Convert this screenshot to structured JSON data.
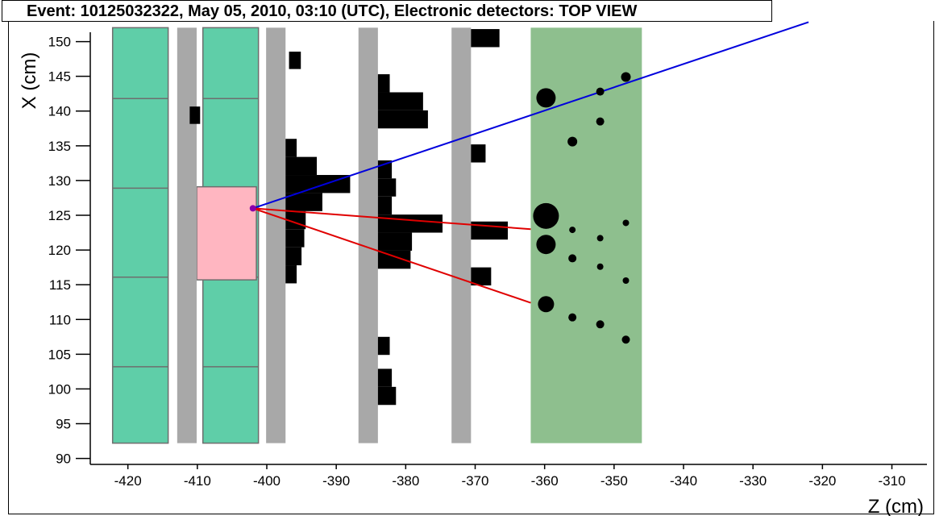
{
  "title": "Event: 10125032322, May 05, 2010, 03:10 (UTC), Electronic detectors: TOP VIEW",
  "chart_data": {
    "type": "scatter",
    "xlabel": "Z (cm)",
    "ylabel": "X (cm)",
    "xlim": [
      -427,
      -307
    ],
    "ylim": [
      90,
      152
    ],
    "xticks": [
      -420,
      -410,
      -400,
      -390,
      -380,
      -370,
      -360,
      -350,
      -340,
      -330,
      -320,
      -310
    ],
    "yticks": [
      90,
      95,
      100,
      105,
      110,
      115,
      120,
      125,
      130,
      135,
      140,
      145,
      150
    ],
    "colors": {
      "teal_module": "#5fcea8",
      "gray_plane": "#a8a8a8",
      "green_block": "#8ebf8e",
      "pink_box": "#ffb6c1",
      "blue_track": "#0000dd",
      "red_track": "#e00000",
      "vertex": "#8a00aa"
    },
    "teal_columns": [
      {
        "z0": -422.2,
        "z1": -414.2,
        "x_dividers": [
          103.2,
          116.1,
          128.9,
          141.8
        ]
      },
      {
        "z0": -409.2,
        "z1": -401.2,
        "x_dividers": [
          103.2,
          116.1,
          141.8
        ]
      }
    ],
    "pink_box": {
      "z0": -410.1,
      "z1": -401.5,
      "x0": 115.7,
      "x1": 129.1
    },
    "gray_planes": [
      {
        "z0": -412.9,
        "z1": -410.1
      },
      {
        "z0": -400.1,
        "z1": -397.3
      },
      {
        "z0": -386.8,
        "z1": -384.0
      },
      {
        "z0": -373.4,
        "z1": -370.6
      }
    ],
    "green_block": {
      "z0": -362.0,
      "z1": -346.0
    },
    "plane_x_range": [
      92.2,
      152
    ],
    "hits": [
      {
        "z": -411.1,
        "x": 139.4,
        "w": 1.5,
        "h": 2.5
      },
      {
        "z": -396.8,
        "x": 147.3,
        "w": 1.7,
        "h": 2.5
      },
      {
        "z": -397.3,
        "x": 134.7,
        "w": 1.6,
        "h": 2.6
      },
      {
        "z": -397.3,
        "x": 132.1,
        "w": 4.5,
        "h": 2.6
      },
      {
        "z": -397.3,
        "x": 129.5,
        "w": 9.3,
        "h": 2.6
      },
      {
        "z": -397.3,
        "x": 126.9,
        "w": 5.3,
        "h": 2.6
      },
      {
        "z": -397.3,
        "x": 124.3,
        "w": 2.9,
        "h": 2.6
      },
      {
        "z": -397.3,
        "x": 121.7,
        "w": 2.7,
        "h": 2.6
      },
      {
        "z": -397.3,
        "x": 119.1,
        "w": 2.3,
        "h": 2.6
      },
      {
        "z": -397.3,
        "x": 116.5,
        "w": 1.6,
        "h": 2.6
      },
      {
        "z": -384.0,
        "x": 144.0,
        "w": 1.7,
        "h": 2.6
      },
      {
        "z": -384.0,
        "x": 141.4,
        "w": 6.5,
        "h": 2.6
      },
      {
        "z": -384.0,
        "x": 138.8,
        "w": 7.2,
        "h": 2.6
      },
      {
        "z": -384.0,
        "x": 131.6,
        "w": 2.0,
        "h": 2.6
      },
      {
        "z": -384.0,
        "x": 129.0,
        "w": 2.6,
        "h": 2.6
      },
      {
        "z": -384.0,
        "x": 126.4,
        "w": 2.0,
        "h": 2.6
      },
      {
        "z": -384.0,
        "x": 123.8,
        "w": 9.3,
        "h": 2.6
      },
      {
        "z": -384.0,
        "x": 121.2,
        "w": 4.9,
        "h": 2.6
      },
      {
        "z": -384.0,
        "x": 118.6,
        "w": 4.7,
        "h": 2.6
      },
      {
        "z": -384.0,
        "x": 106.2,
        "w": 1.7,
        "h": 2.6
      },
      {
        "z": -384.0,
        "x": 101.6,
        "w": 2.0,
        "h": 2.6
      },
      {
        "z": -384.0,
        "x": 99.0,
        "w": 2.6,
        "h": 2.6
      },
      {
        "z": -370.6,
        "x": 150.5,
        "w": 4.1,
        "h": 2.6
      },
      {
        "z": -370.6,
        "x": 133.9,
        "w": 2.1,
        "h": 2.6
      },
      {
        "z": -370.6,
        "x": 122.8,
        "w": 5.3,
        "h": 2.6
      },
      {
        "z": -370.6,
        "x": 116.2,
        "w": 2.9,
        "h": 2.6
      }
    ],
    "dots": [
      {
        "z": -359.8,
        "x": 141.9,
        "size": "large"
      },
      {
        "z": -352.0,
        "x": 142.8,
        "size": "small"
      },
      {
        "z": -348.3,
        "x": 144.9,
        "size": "medium"
      },
      {
        "z": -352.0,
        "x": 138.5,
        "size": "small"
      },
      {
        "z": -356.0,
        "x": 135.6,
        "size": "medium"
      },
      {
        "z": -359.8,
        "x": 124.9,
        "size": "xlarge"
      },
      {
        "z": -356.0,
        "x": 122.9,
        "size": "tiny"
      },
      {
        "z": -348.3,
        "x": 123.9,
        "size": "tiny"
      },
      {
        "z": -352.0,
        "x": 121.7,
        "size": "tiny"
      },
      {
        "z": -359.8,
        "x": 120.8,
        "size": "large"
      },
      {
        "z": -356.0,
        "x": 118.8,
        "size": "small"
      },
      {
        "z": -352.0,
        "x": 117.6,
        "size": "tiny"
      },
      {
        "z": -348.3,
        "x": 115.6,
        "size": "tiny"
      },
      {
        "z": -359.8,
        "x": 112.2,
        "size": "medium-large"
      },
      {
        "z": -356.0,
        "x": 110.3,
        "size": "small"
      },
      {
        "z": -352.0,
        "x": 109.3,
        "size": "small"
      },
      {
        "z": -348.3,
        "x": 107.1,
        "size": "small"
      }
    ],
    "vertex": {
      "z": -402.0,
      "x": 126.0
    },
    "tracks": [
      {
        "color": "blue",
        "from": {
          "z": -402.0,
          "x": 126.0
        },
        "to": {
          "z": -322.0,
          "x": 152.8
        }
      },
      {
        "color": "red",
        "from": {
          "z": -402.0,
          "x": 126.0
        },
        "to": {
          "z": -362.0,
          "x": 123.0
        }
      },
      {
        "color": "red",
        "from": {
          "z": -402.0,
          "x": 126.0
        },
        "to": {
          "z": -362.0,
          "x": 112.4
        }
      }
    ]
  }
}
